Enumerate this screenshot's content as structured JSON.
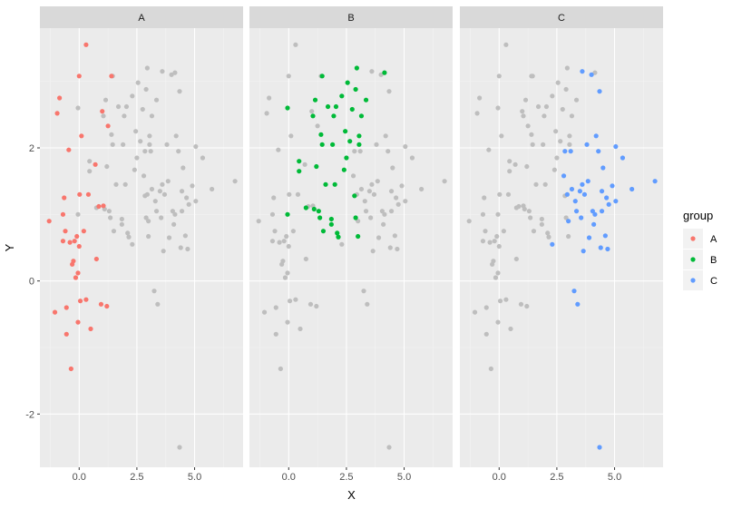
{
  "chart_data": {
    "type": "scatter",
    "facet_by": "group",
    "panels": [
      "A",
      "B",
      "C"
    ],
    "xlabel": "X",
    "ylabel": "Y",
    "xlim": [
      -1.7,
      7.1
    ],
    "ylim": [
      -2.8,
      3.8
    ],
    "x_ticks": [
      0,
      2.5,
      5
    ],
    "x_tick_labels": [
      "0.0",
      "2.5",
      "5.0"
    ],
    "y_ticks": [
      -2,
      0,
      2
    ],
    "y_tick_labels": [
      "-2",
      "0",
      "2"
    ],
    "grid": true,
    "background_color": "#EBEBEB",
    "background_point_color": "#BEBEBE",
    "legend": {
      "title": "group",
      "position": "right",
      "entries": [
        {
          "label": "A",
          "color": "#F8766D"
        },
        {
          "label": "B",
          "color": "#00BA38"
        },
        {
          "label": "C",
          "color": "#619CFF"
        }
      ]
    },
    "series": [
      {
        "group": "A",
        "color": "#F8766D",
        "points": [
          [
            -1.3,
            0.9
          ],
          [
            -1.05,
            -0.47
          ],
          [
            -0.95,
            2.52
          ],
          [
            -0.85,
            2.75
          ],
          [
            -0.7,
            0.6
          ],
          [
            -0.7,
            1.0
          ],
          [
            -0.65,
            1.25
          ],
          [
            -0.6,
            0.75
          ],
          [
            -0.55,
            -0.4
          ],
          [
            -0.55,
            -0.8
          ],
          [
            -0.45,
            1.97
          ],
          [
            -0.4,
            0.58
          ],
          [
            -0.35,
            -1.32
          ],
          [
            -0.3,
            0.25
          ],
          [
            -0.25,
            0.3
          ],
          [
            -0.2,
            0.6
          ],
          [
            -0.15,
            0.05
          ],
          [
            -0.1,
            0.67
          ],
          [
            -0.05,
            0.12
          ],
          [
            -0.05,
            -0.62
          ],
          [
            0.0,
            3.08
          ],
          [
            0.0,
            0.52
          ],
          [
            0.02,
            1.3
          ],
          [
            0.05,
            -0.3
          ],
          [
            0.1,
            2.18
          ],
          [
            0.2,
            0.75
          ],
          [
            0.3,
            3.55
          ],
          [
            0.3,
            -0.28
          ],
          [
            0.4,
            1.3
          ],
          [
            0.5,
            -0.72
          ],
          [
            0.7,
            1.75
          ],
          [
            0.75,
            0.33
          ],
          [
            0.85,
            1.12
          ],
          [
            0.95,
            -0.35
          ],
          [
            1.0,
            2.55
          ],
          [
            1.05,
            1.13
          ],
          [
            1.2,
            -0.38
          ],
          [
            1.25,
            2.33
          ],
          [
            1.4,
            3.08
          ]
        ]
      },
      {
        "group": "B",
        "color": "#00BA38",
        "points": [
          [
            -0.05,
            2.6
          ],
          [
            -0.05,
            1.0
          ],
          [
            0.45,
            1.8
          ],
          [
            0.45,
            1.65
          ],
          [
            0.75,
            1.1
          ],
          [
            1.05,
            2.48
          ],
          [
            1.1,
            1.08
          ],
          [
            1.15,
            2.72
          ],
          [
            1.2,
            1.72
          ],
          [
            1.3,
            1.05
          ],
          [
            1.35,
            0.95
          ],
          [
            1.4,
            2.2
          ],
          [
            1.45,
            3.08
          ],
          [
            1.45,
            2.05
          ],
          [
            1.5,
            0.75
          ],
          [
            1.6,
            1.45
          ],
          [
            1.7,
            2.62
          ],
          [
            1.85,
            0.93
          ],
          [
            1.85,
            0.85
          ],
          [
            1.9,
            2.05
          ],
          [
            1.95,
            2.48
          ],
          [
            2.0,
            1.45
          ],
          [
            2.05,
            2.62
          ],
          [
            2.1,
            0.72
          ],
          [
            2.15,
            0.66
          ],
          [
            2.3,
            2.78
          ],
          [
            2.4,
            1.67
          ],
          [
            2.45,
            2.25
          ],
          [
            2.5,
            1.85
          ],
          [
            2.55,
            2.98
          ],
          [
            2.65,
            2.1
          ],
          [
            2.75,
            2.58
          ],
          [
            2.85,
            1.28
          ],
          [
            2.9,
            2.88
          ],
          [
            2.9,
            0.95
          ],
          [
            2.95,
            3.2
          ],
          [
            3.0,
            0.67
          ],
          [
            3.05,
            2.18
          ],
          [
            3.05,
            2.05
          ],
          [
            3.15,
            2.48
          ],
          [
            3.35,
            2.72
          ],
          [
            4.15,
            3.13
          ]
        ]
      },
      {
        "group": "C",
        "color": "#619CFF",
        "points": [
          [
            2.3,
            0.55
          ],
          [
            2.8,
            1.58
          ],
          [
            2.85,
            1.95
          ],
          [
            2.95,
            1.3
          ],
          [
            3.0,
            0.9
          ],
          [
            3.1,
            1.95
          ],
          [
            3.15,
            1.38
          ],
          [
            3.25,
            -0.15
          ],
          [
            3.3,
            1.2
          ],
          [
            3.35,
            1.05
          ],
          [
            3.4,
            -0.35
          ],
          [
            3.5,
            1.35
          ],
          [
            3.55,
            0.95
          ],
          [
            3.6,
            3.15
          ],
          [
            3.6,
            1.45
          ],
          [
            3.65,
            0.45
          ],
          [
            3.7,
            1.3
          ],
          [
            3.8,
            2.05
          ],
          [
            3.85,
            1.5
          ],
          [
            3.9,
            0.65
          ],
          [
            4.0,
            3.1
          ],
          [
            4.05,
            1.05
          ],
          [
            4.1,
            0.85
          ],
          [
            4.15,
            1.0
          ],
          [
            4.2,
            2.18
          ],
          [
            4.3,
            1.95
          ],
          [
            4.35,
            2.85
          ],
          [
            4.4,
            0.5
          ],
          [
            4.45,
            1.35
          ],
          [
            4.45,
            1.05
          ],
          [
            4.5,
            1.7
          ],
          [
            4.6,
            0.68
          ],
          [
            4.65,
            1.25
          ],
          [
            4.7,
            0.48
          ],
          [
            4.75,
            1.15
          ],
          [
            4.9,
            1.43
          ],
          [
            5.05,
            1.2
          ],
          [
            5.05,
            2.02
          ],
          [
            5.35,
            1.85
          ],
          [
            5.75,
            1.38
          ],
          [
            6.75,
            1.5
          ],
          [
            4.35,
            -2.5
          ]
        ]
      }
    ]
  }
}
